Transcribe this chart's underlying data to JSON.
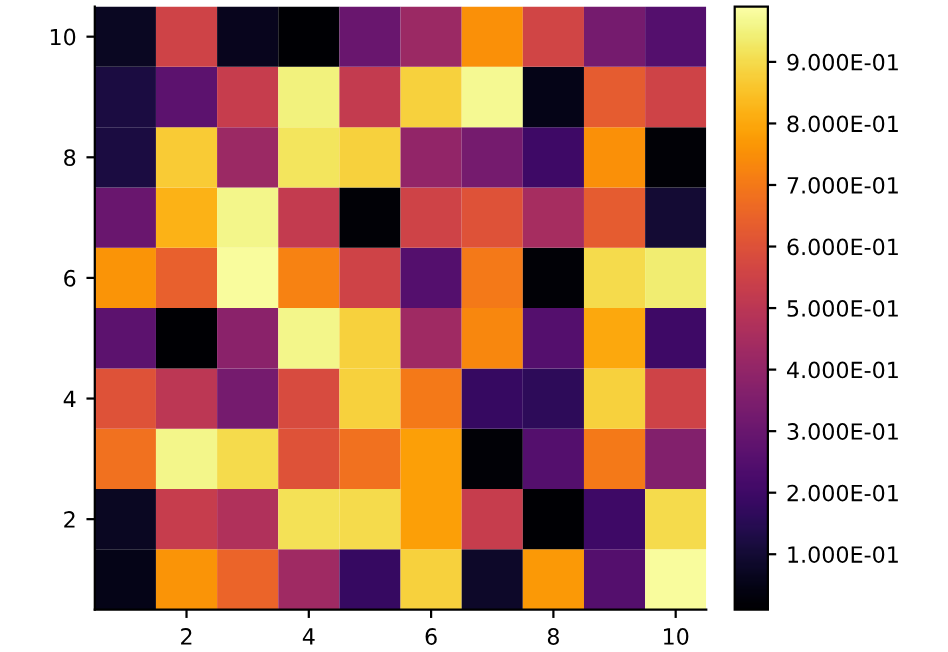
{
  "chart_data": {
    "type": "heatmap",
    "categories": [
      null,
      "2",
      null,
      "4",
      null,
      "6",
      null,
      "8",
      null,
      "10"
    ],
    "y_categories": [
      "10",
      null,
      "8",
      null,
      "6",
      null,
      "4",
      null,
      "2",
      null
    ],
    "cells": [
      [
        0.07,
        0.55,
        0.06,
        0.01,
        0.3,
        0.42,
        0.75,
        0.56,
        0.33,
        0.25
      ],
      [
        0.12,
        0.27,
        0.53,
        0.95,
        0.52,
        0.88,
        0.97,
        0.05,
        0.63,
        0.55
      ],
      [
        0.12,
        0.87,
        0.42,
        0.92,
        0.88,
        0.4,
        0.33,
        0.2,
        0.75,
        0.02
      ],
      [
        0.3,
        0.82,
        0.96,
        0.52,
        0.02,
        0.55,
        0.6,
        0.45,
        0.63,
        0.1
      ],
      [
        0.76,
        0.64,
        0.98,
        0.72,
        0.55,
        0.25,
        0.7,
        0.02,
        0.9,
        0.94
      ],
      [
        0.27,
        0.01,
        0.38,
        0.96,
        0.88,
        0.43,
        0.73,
        0.25,
        0.8,
        0.2
      ],
      [
        0.6,
        0.5,
        0.33,
        0.58,
        0.88,
        0.7,
        0.18,
        0.16,
        0.88,
        0.55
      ],
      [
        0.68,
        0.96,
        0.9,
        0.6,
        0.68,
        0.78,
        0.02,
        0.25,
        0.7,
        0.36
      ],
      [
        0.07,
        0.53,
        0.47,
        0.91,
        0.9,
        0.78,
        0.53,
        0.01,
        0.2,
        0.9
      ],
      [
        0.05,
        0.76,
        0.65,
        0.43,
        0.18,
        0.88,
        0.08,
        0.77,
        0.25,
        0.98
      ]
    ],
    "clim": [
      0.01,
      0.99
    ],
    "cticks": [
      {
        "value": 0.1,
        "label": "1.000E-01"
      },
      {
        "value": 0.2,
        "label": "2.000E-01"
      },
      {
        "value": 0.3,
        "label": "3.000E-01"
      },
      {
        "value": 0.4,
        "label": "4.000E-01"
      },
      {
        "value": 0.5,
        "label": "5.000E-01"
      },
      {
        "value": 0.6,
        "label": "6.000E-01"
      },
      {
        "value": 0.7,
        "label": "7.000E-01"
      },
      {
        "value": 0.8,
        "label": "8.000E-01"
      },
      {
        "value": 0.9,
        "label": "9.000E-01"
      }
    ],
    "grid": false
  }
}
